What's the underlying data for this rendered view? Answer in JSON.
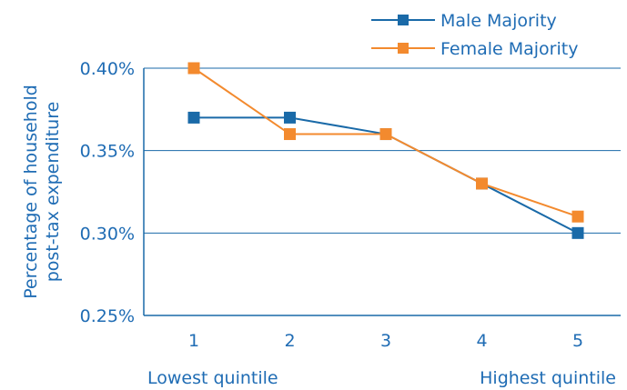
{
  "chart_data": {
    "type": "line",
    "categories": [
      "1",
      "2",
      "3",
      "4",
      "5"
    ],
    "ylabel_lines": [
      "Percentage of household",
      "post-tax expenditure"
    ],
    "x_notes": {
      "left": "Lowest quintile",
      "right": "Highest quintile"
    },
    "yticks": [
      "0.25%",
      "0.30%",
      "0.35%",
      "0.40%"
    ],
    "ylim": [
      0.25,
      0.4
    ],
    "grid": true,
    "legend_position": "top-right",
    "series": [
      {
        "name": "Male Majority",
        "color": "#1a6aa8",
        "values": [
          0.37,
          0.37,
          0.36,
          0.33,
          0.3
        ]
      },
      {
        "name": "Female Majority",
        "color": "#f38a2e",
        "values": [
          0.4,
          0.36,
          0.36,
          0.33,
          0.31
        ]
      }
    ]
  }
}
